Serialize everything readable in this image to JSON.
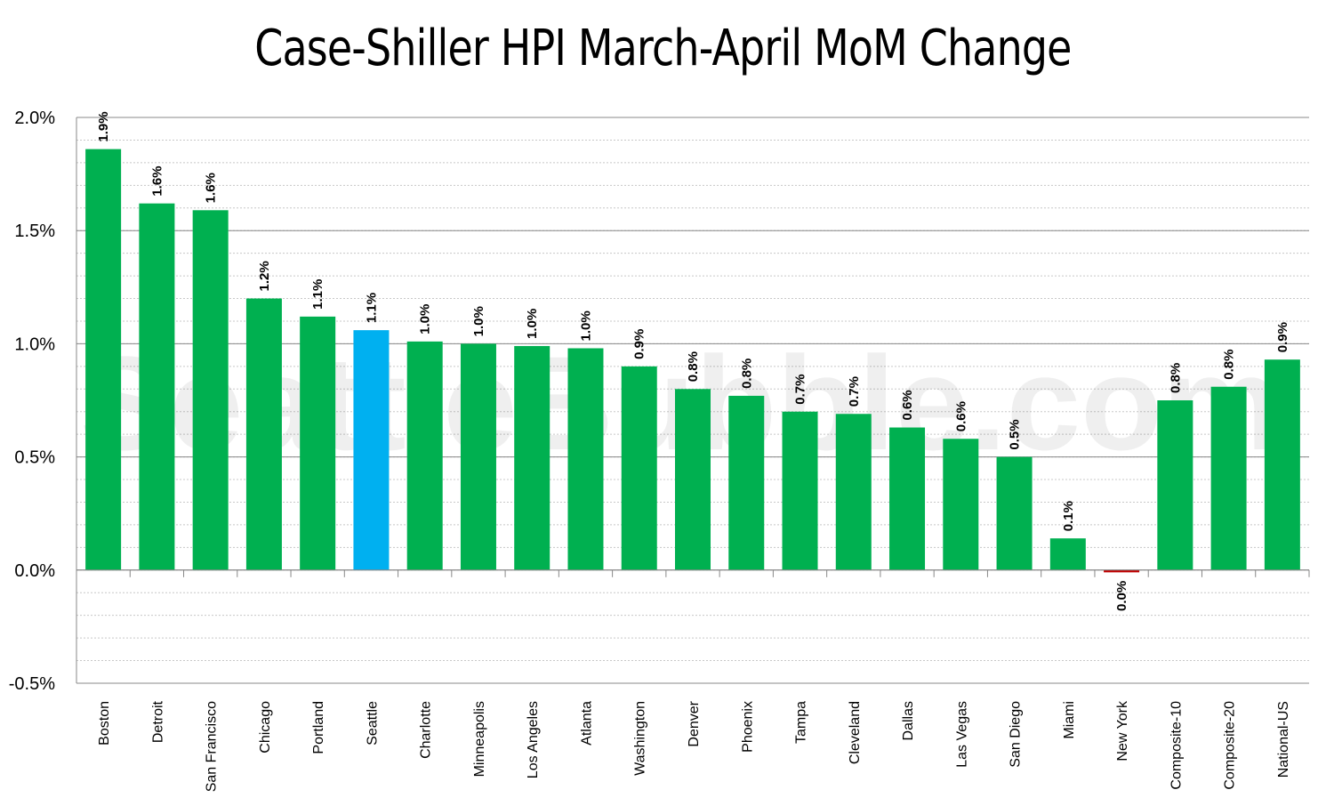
{
  "chart_data": {
    "type": "bar",
    "title": "Case-Shiller HPI March-April MoM Change",
    "watermark": "SeattleBubble.com",
    "categories": [
      "Boston",
      "Detroit",
      "San Francisco",
      "Chicago",
      "Portland",
      "Seattle",
      "Charlotte",
      "Minneapolis",
      "Los Angeles",
      "Atlanta",
      "Washington",
      "Denver",
      "Phoenix",
      "Tampa",
      "Cleveland",
      "Dallas",
      "Las Vegas",
      "San Diego",
      "Miami",
      "New York",
      "Composite-10",
      "Composite-20",
      "National-US"
    ],
    "values": [
      1.86,
      1.62,
      1.59,
      1.2,
      1.12,
      1.06,
      1.01,
      1.0,
      0.99,
      0.98,
      0.9,
      0.8,
      0.77,
      0.7,
      0.69,
      0.63,
      0.58,
      0.5,
      0.14,
      -0.01,
      0.75,
      0.81,
      0.93
    ],
    "labels": [
      "1.9%",
      "1.6%",
      "1.6%",
      "1.2%",
      "1.1%",
      "1.1%",
      "1.0%",
      "1.0%",
      "1.0%",
      "1.0%",
      "0.9%",
      "0.8%",
      "0.8%",
      "0.7%",
      "0.7%",
      "0.6%",
      "0.6%",
      "0.5%",
      "0.1%",
      "0.0%",
      "0.8%",
      "0.8%",
      "0.9%"
    ],
    "ylim": [
      -0.5,
      2.0
    ],
    "yticks": [
      2.0,
      1.5,
      1.0,
      0.5,
      0.0,
      -0.5
    ],
    "ytick_labels": [
      "2.0%",
      "1.5%",
      "1.0%",
      "0.5%",
      "0.0%",
      "-0.5%"
    ],
    "grid": true,
    "minor_grid": true,
    "colors": {
      "default": "#00b050",
      "highlight": "#00b0f0",
      "negative": "#c00000",
      "major_grid": "#888888",
      "minor_grid": "#c8c8c8"
    },
    "highlight_category": "Seattle"
  }
}
